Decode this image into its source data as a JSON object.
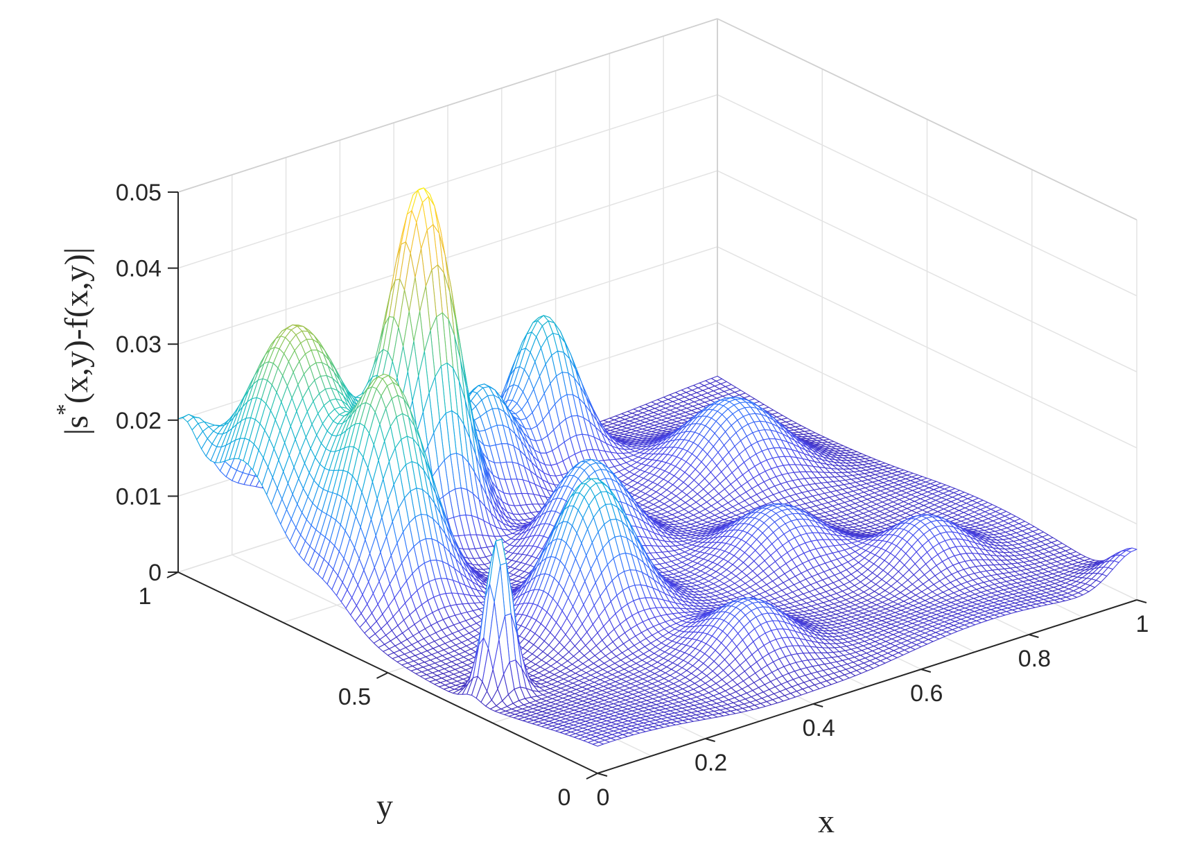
{
  "chart_data": {
    "type": "surface",
    "title": "",
    "xlabel": "x",
    "ylabel": "y",
    "zlabel": {
      "bar_left": "|",
      "s": "s",
      "star": "*",
      "rest": "(x,y)-f(x,y)",
      "bar_right": "|"
    },
    "xlim": [
      0,
      1
    ],
    "ylim": [
      0,
      1
    ],
    "zlim": [
      0,
      0.05
    ],
    "grid": true,
    "colormap": "parula",
    "colormap_stops": [
      "#3e26a8",
      "#4746eb",
      "#2f78fd",
      "#0ea6e3",
      "#1fc1ba",
      "#78c860",
      "#d9ba37",
      "#fec832",
      "#f9fb0e"
    ],
    "x_ticks": [
      "0",
      "0.2",
      "0.4",
      "0.6",
      "0.8",
      "1"
    ],
    "x_tick_values": [
      0,
      0.2,
      0.4,
      0.6,
      0.8,
      1
    ],
    "y_ticks": [
      "0",
      "0.5",
      "1"
    ],
    "y_tick_values": [
      0,
      0.5,
      1
    ],
    "z_ticks": [
      "0",
      "0.01",
      "0.02",
      "0.03",
      "0.04",
      "0.05"
    ],
    "z_tick_values": [
      0,
      0.01,
      0.02,
      0.03,
      0.04,
      0.05
    ],
    "peaks": [
      {
        "x": 0.3,
        "y": 0.8,
        "height": 0.046,
        "width": 0.05
      },
      {
        "x": 0.1,
        "y": 0.85,
        "height": 0.031,
        "width": 0.085
      },
      {
        "x": 0.12,
        "y": 0.65,
        "height": 0.027,
        "width": 0.06
      },
      {
        "x": 0.05,
        "y": 0.3,
        "height": 0.021,
        "width": 0.02
      },
      {
        "x": 0.3,
        "y": 0.4,
        "height": 0.018,
        "width": 0.06
      },
      {
        "x": 0.45,
        "y": 0.85,
        "height": 0.016,
        "width": 0.05
      },
      {
        "x": 0.6,
        "y": 0.9,
        "height": 0.02,
        "width": 0.05
      },
      {
        "x": 0.45,
        "y": 0.6,
        "height": 0.013,
        "width": 0.06
      },
      {
        "x": 0.8,
        "y": 0.7,
        "height": 0.009,
        "width": 0.07
      },
      {
        "x": 0.65,
        "y": 0.4,
        "height": 0.008,
        "width": 0.07
      },
      {
        "x": 0.4,
        "y": 0.15,
        "height": 0.007,
        "width": 0.06
      },
      {
        "x": 0.8,
        "y": 0.25,
        "height": 0.007,
        "width": 0.06
      }
    ],
    "edge_values": [
      {
        "x": 0,
        "y": 1,
        "z": 0.015
      },
      {
        "x": 1,
        "y": 0,
        "z": 0.005
      }
    ]
  }
}
